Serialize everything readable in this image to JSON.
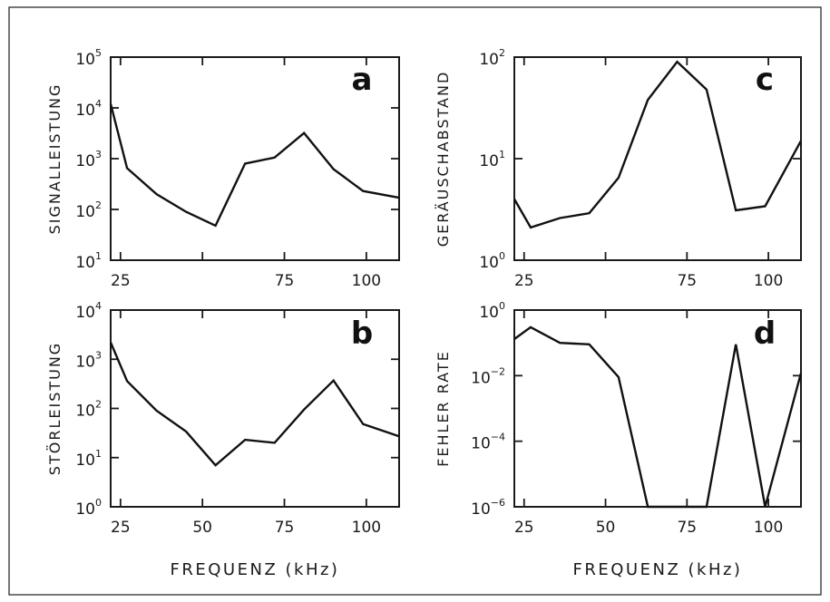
{
  "chart_data": [
    {
      "type": "line",
      "panel": "a",
      "ylabel": "SIGNALLEISTUNG",
      "xlabel": "",
      "yscale": "log",
      "ylim": [
        10,
        100000
      ],
      "xlim": [
        22,
        110
      ],
      "x_ticks": [
        25,
        50,
        75,
        100
      ],
      "x_tick_labels": [
        "25",
        "",
        "75",
        "100"
      ],
      "y_ticks": [
        10,
        100,
        1000,
        10000,
        100000
      ],
      "y_tick_labels": [
        {
          "base": "10",
          "exp": "1"
        },
        {
          "base": "10",
          "exp": "2"
        },
        {
          "base": "10",
          "exp": "3"
        },
        {
          "base": "10",
          "exp": "4"
        },
        {
          "base": "10",
          "exp": "5"
        }
      ],
      "x": [
        22,
        27,
        36,
        45,
        54,
        63,
        72,
        81,
        90,
        99,
        110
      ],
      "y": [
        12000,
        650,
        200,
        90,
        48,
        800,
        1050,
        3200,
        620,
        230,
        170
      ]
    },
    {
      "type": "line",
      "panel": "b",
      "ylabel": "STÖRLEISTUNG",
      "xlabel": "FREQUENZ (kHz)",
      "yscale": "log",
      "ylim": [
        1,
        10000
      ],
      "xlim": [
        22,
        110
      ],
      "x_ticks": [
        25,
        50,
        75,
        100
      ],
      "x_tick_labels": [
        "25",
        "50",
        "75",
        "100"
      ],
      "y_ticks": [
        1,
        10,
        100,
        1000,
        10000
      ],
      "y_tick_labels": [
        {
          "base": "10",
          "exp": "0"
        },
        {
          "base": "10",
          "exp": "1"
        },
        {
          "base": "10",
          "exp": "2"
        },
        {
          "base": "10",
          "exp": "3"
        },
        {
          "base": "10",
          "exp": "4"
        }
      ],
      "x": [
        22,
        27,
        36,
        45,
        54,
        63,
        72,
        81,
        90,
        99,
        110
      ],
      "y": [
        2200,
        360,
        90,
        34,
        7,
        23,
        20,
        95,
        370,
        48,
        27
      ]
    },
    {
      "type": "line",
      "panel": "c",
      "ylabel": "GERÄUSCHABSTAND",
      "xlabel": "",
      "yscale": "log",
      "ylim": [
        1,
        100
      ],
      "xlim": [
        22,
        110
      ],
      "x_ticks": [
        25,
        50,
        75,
        100
      ],
      "x_tick_labels": [
        "25",
        "",
        "75",
        "100"
      ],
      "y_ticks": [
        1,
        10,
        100
      ],
      "y_tick_labels": [
        {
          "base": "10",
          "exp": "0"
        },
        {
          "base": "10",
          "exp": "1"
        },
        {
          "base": "10",
          "exp": "2"
        }
      ],
      "x": [
        22,
        27,
        36,
        45,
        54,
        63,
        72,
        81,
        90,
        99,
        110
      ],
      "y": [
        4,
        2.1,
        2.6,
        2.9,
        6.5,
        38,
        90,
        48,
        3.1,
        3.4,
        15
      ]
    },
    {
      "type": "line",
      "panel": "d",
      "ylabel": "FEHLER    RATE",
      "xlabel": "FREQUENZ (kHz)",
      "yscale": "log",
      "ylim": [
        1e-06,
        1
      ],
      "xlim": [
        22,
        110
      ],
      "x_ticks": [
        25,
        50,
        75,
        100
      ],
      "x_tick_labels": [
        "25",
        "50",
        "75",
        "100"
      ],
      "y_ticks": [
        1e-06,
        0.0001,
        0.01,
        1
      ],
      "y_tick_labels": [
        {
          "base": "10",
          "exp": "−6"
        },
        {
          "base": "10",
          "exp": "−4"
        },
        {
          "base": "10",
          "exp": "−2"
        },
        {
          "base": "10",
          "exp": "0"
        }
      ],
      "x": [
        22,
        27,
        36,
        45,
        54,
        63,
        72,
        81,
        90,
        99,
        110
      ],
      "y": [
        0.13,
        0.3,
        0.1,
        0.09,
        0.009,
        1e-06,
        1e-06,
        1e-06,
        0.09,
        1e-06,
        0.012
      ]
    }
  ]
}
